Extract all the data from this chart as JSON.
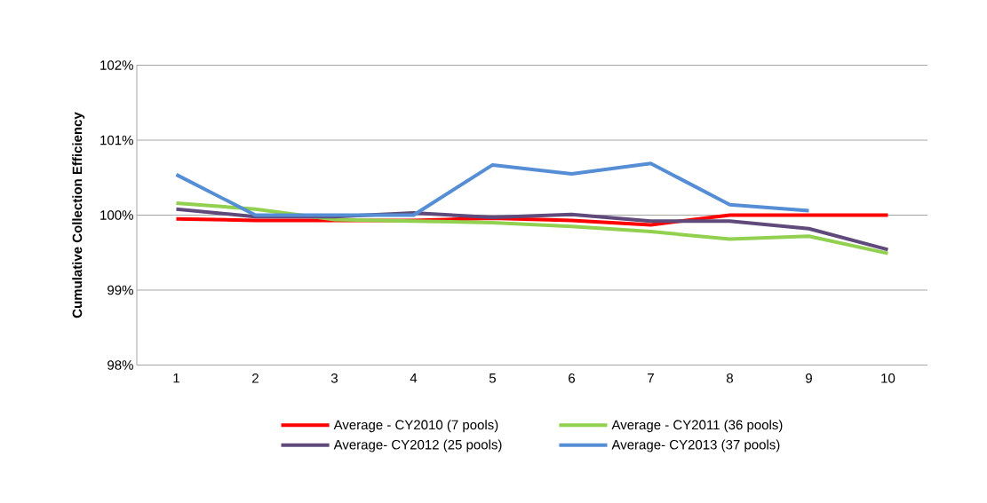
{
  "chart_data": {
    "type": "line",
    "ylabel": "Cumulative  Collection Efficiency",
    "categories": [
      "1",
      "2",
      "3",
      "4",
      "5",
      "6",
      "7",
      "8",
      "9",
      "10"
    ],
    "series": [
      {
        "name": "Average - CY2010 (7 pools)",
        "color": "#ff0000",
        "values": [
          99.95,
          99.93,
          99.93,
          99.93,
          99.96,
          99.93,
          99.87,
          100.0,
          100.0,
          100.0
        ]
      },
      {
        "name": "Average - CY2011 (36 pools)",
        "color": "#92d050",
        "values": [
          100.16,
          100.08,
          99.94,
          99.92,
          99.9,
          99.85,
          99.78,
          99.68,
          99.72,
          99.49
        ]
      },
      {
        "name": "Average- CY2012 (25 pools)",
        "color": "#604a7b",
        "values": [
          100.08,
          99.98,
          99.98,
          100.03,
          99.97,
          100.01,
          99.92,
          99.92,
          99.82,
          99.54
        ]
      },
      {
        "name": "Average- CY2013 (37 pools)",
        "color": "#558ed5",
        "values": [
          100.54,
          100.0,
          100.0,
          100.0,
          100.67,
          100.55,
          100.69,
          100.14,
          100.06,
          null
        ]
      }
    ],
    "ylim": [
      98,
      102
    ],
    "yticks": [
      {
        "value": 98,
        "label": "98%"
      },
      {
        "value": 99,
        "label": "99%"
      },
      {
        "value": 100,
        "label": "100%"
      },
      {
        "value": 101,
        "label": "101%"
      },
      {
        "value": 102,
        "label": "102%"
      }
    ],
    "grid": "y",
    "legend": "bottom",
    "marker": "none",
    "line_style": "solid"
  }
}
